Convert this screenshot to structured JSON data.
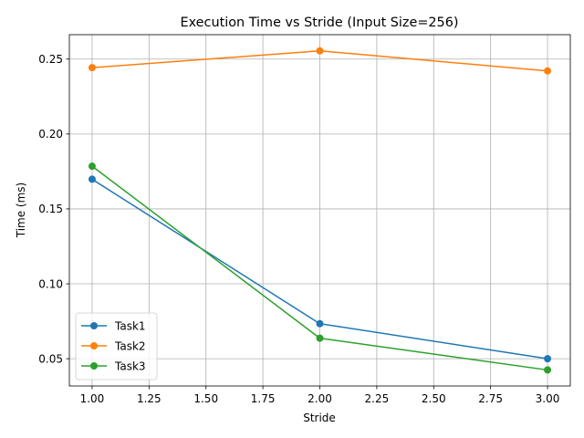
{
  "chart_data": {
    "type": "line",
    "title": "Execution Time vs Stride (Input Size=256)",
    "xlabel": "Stride",
    "ylabel": "Time (ms)",
    "x": [
      1,
      2,
      3
    ],
    "xlim": [
      0.9,
      3.1
    ],
    "ylim": [
      0.0318,
      0.2663
    ],
    "xticks": [
      1.0,
      1.25,
      1.5,
      1.75,
      2.0,
      2.25,
      2.5,
      2.75,
      3.0
    ],
    "xtick_labels": [
      "1.00",
      "1.25",
      "1.50",
      "1.75",
      "2.00",
      "2.25",
      "2.50",
      "2.75",
      "3.00"
    ],
    "yticks": [
      0.05,
      0.1,
      0.15,
      0.2,
      0.25
    ],
    "ytick_labels": [
      "0.05",
      "0.10",
      "0.15",
      "0.20",
      "0.25"
    ],
    "grid": true,
    "legend_position": "lower-left",
    "series": [
      {
        "name": "Task1",
        "color": "#1f77b4",
        "values": [
          0.1698,
          0.0734,
          0.05
        ]
      },
      {
        "name": "Task2",
        "color": "#ff7f0e",
        "values": [
          0.2443,
          0.2555,
          0.2421
        ]
      },
      {
        "name": "Task3",
        "color": "#2ca02c",
        "values": [
          0.1785,
          0.0637,
          0.0425
        ]
      }
    ]
  }
}
